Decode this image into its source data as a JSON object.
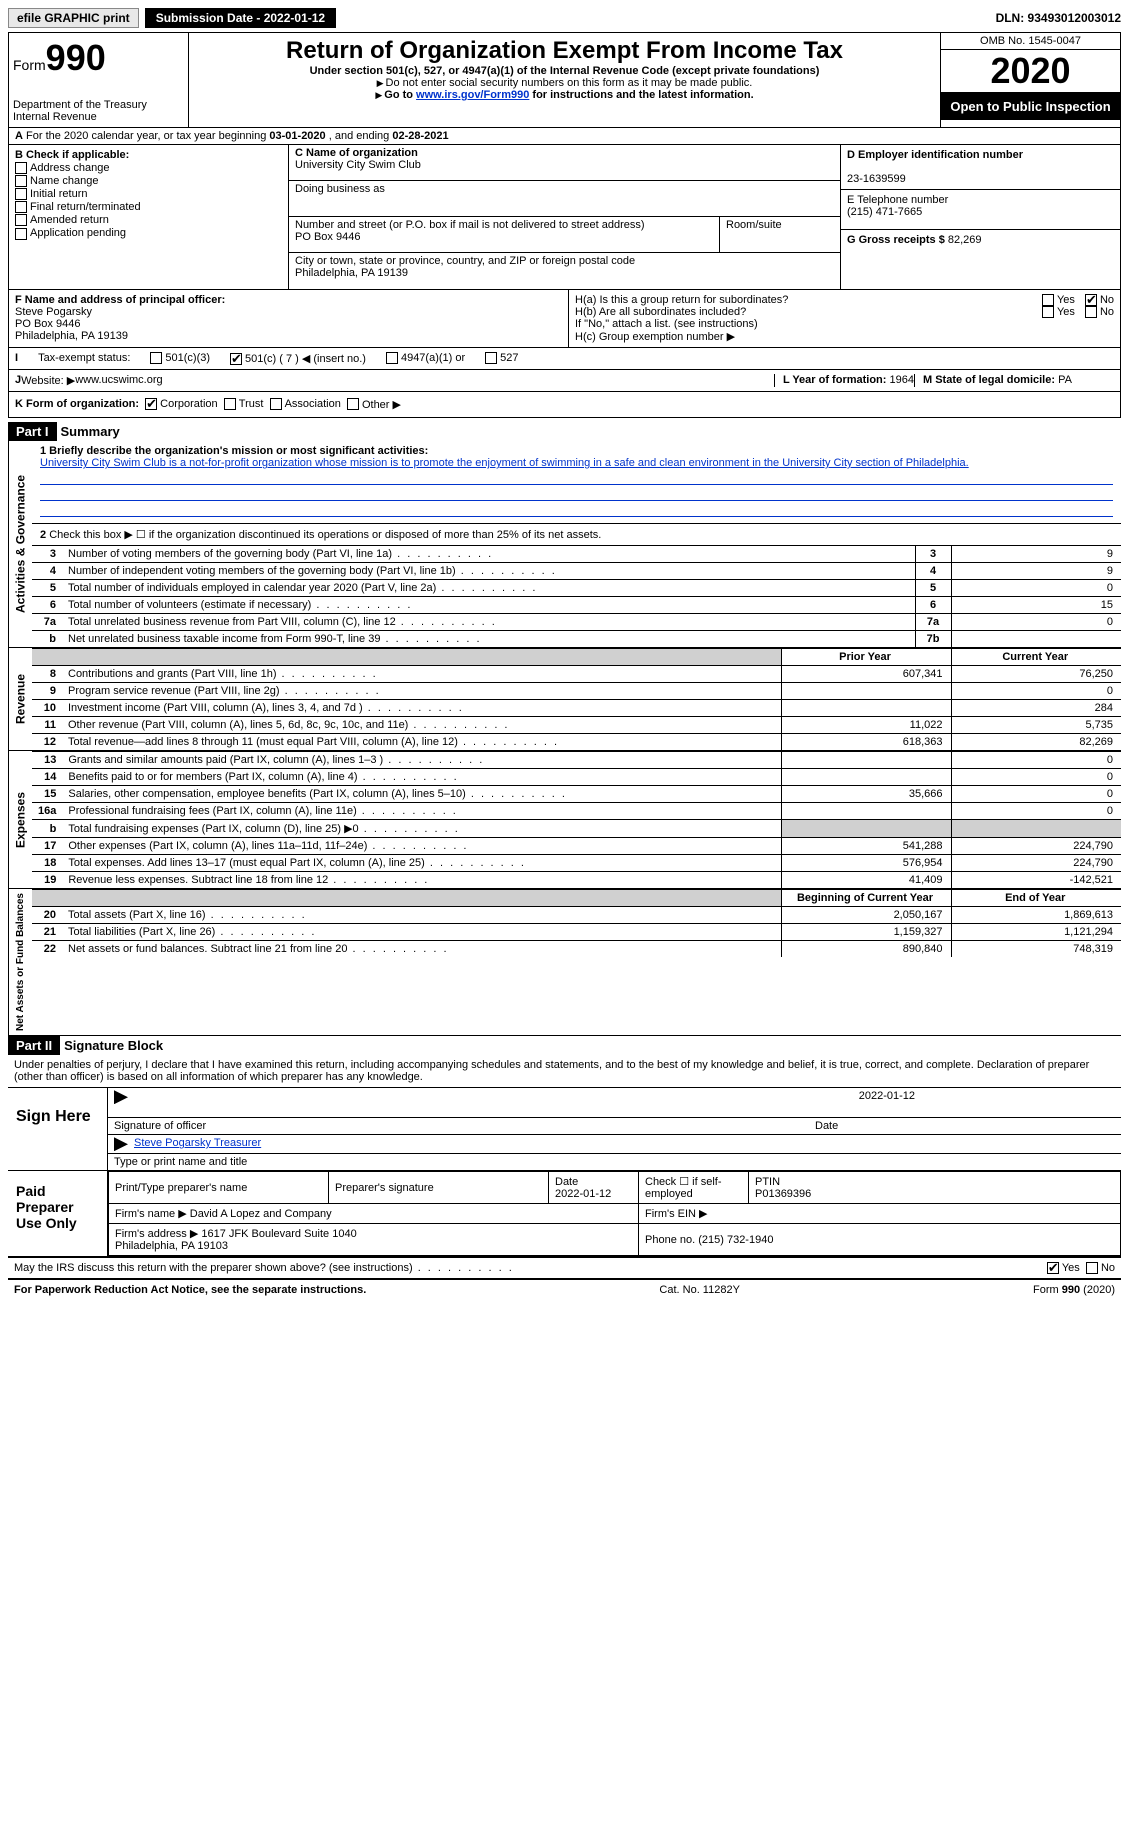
{
  "topbar": {
    "efile": "efile GRAPHIC print",
    "submission": "Submission Date - 2022-01-12",
    "dln": "DLN: 93493012003012"
  },
  "header": {
    "form_prefix": "Form",
    "form_num": "990",
    "dept": "Department of the Treasury\nInternal Revenue",
    "title": "Return of Organization Exempt From Income Tax",
    "sub": "Under section 501(c), 527, or 4947(a)(1) of the Internal Revenue Code (except private foundations)",
    "note1": "Do not enter social security numbers on this form as it may be made public.",
    "note2_pre": "Go to ",
    "note2_link": "www.irs.gov/Form990",
    "note2_post": " for instructions and the latest information.",
    "omb": "OMB No. 1545-0047",
    "year": "2020",
    "inspection": "Open to Public Inspection"
  },
  "line_a": {
    "text": "For the 2020 calendar year, or tax year beginning ",
    "begin": "03-01-2020",
    "mid": " , and ending ",
    "end": "02-28-2021"
  },
  "col_b": {
    "hdr": "B Check if applicable:",
    "opts": [
      "Address change",
      "Name change",
      "Initial return",
      "Final return/terminated",
      "Amended return",
      "Application pending"
    ]
  },
  "col_c": {
    "name_lbl": "C Name of organization",
    "name": "University City Swim Club",
    "dba_lbl": "Doing business as",
    "dba": "",
    "addr_lbl": "Number and street (or P.O. box if mail is not delivered to street address)",
    "room_lbl": "Room/suite",
    "addr": "PO Box 9446",
    "city_lbl": "City or town, state or province, country, and ZIP or foreign postal code",
    "city": "Philadelphia, PA  19139"
  },
  "col_d": {
    "ein_lbl": "D Employer identification number",
    "ein": "23-1639599",
    "tel_lbl": "E Telephone number",
    "tel": "(215) 471-7665",
    "gross_lbl": "G Gross receipts $",
    "gross": "82,269"
  },
  "f": {
    "lbl": "F Name and address of principal officer:",
    "name": "Steve Pogarsky",
    "addr1": "PO Box 9446",
    "addr2": "Philadelphia, PA  19139"
  },
  "h": {
    "a_lbl": "H(a)  Is this a group return for subordinates?",
    "a_yes": "Yes",
    "a_no": "No",
    "b_lbl": "H(b)  Are all subordinates included?",
    "b_note": "If \"No,\" attach a list. (see instructions)",
    "c_lbl": "H(c)  Group exemption number ▶"
  },
  "i": {
    "lbl": "Tax-exempt status:",
    "o1": "501(c)(3)",
    "o2": "501(c) ( 7 ) ◀ (insert no.)",
    "o3": "4947(a)(1) or",
    "o4": "527"
  },
  "j": {
    "lbl": "Website: ▶",
    "val": "www.ucswimc.org"
  },
  "k": {
    "lbl": "K Form of organization:",
    "o1": "Corporation",
    "o2": "Trust",
    "o3": "Association",
    "o4": "Other ▶",
    "l_lbl": "L Year of formation:",
    "l_val": "1964",
    "m_lbl": "M State of legal domicile:",
    "m_val": "PA"
  },
  "part1": {
    "hdr": "Part I",
    "title": "Summary",
    "q1_lbl": "1  Briefly describe the organization's mission or most significant activities:",
    "q1_val": "University City Swim Club is a not-for-profit organization whose mission is to promote the enjoyment of swimming in a safe and clean environment in the University City section of Philadelphia.",
    "q2": "Check this box ▶ ☐  if the organization discontinued its operations or disposed of more than 25% of its net assets.",
    "gov_rows": [
      {
        "n": "3",
        "d": "Number of voting members of the governing body (Part VI, line 1a)",
        "b": "3",
        "v": "9"
      },
      {
        "n": "4",
        "d": "Number of independent voting members of the governing body (Part VI, line 1b)",
        "b": "4",
        "v": "9"
      },
      {
        "n": "5",
        "d": "Total number of individuals employed in calendar year 2020 (Part V, line 2a)",
        "b": "5",
        "v": "0"
      },
      {
        "n": "6",
        "d": "Total number of volunteers (estimate if necessary)",
        "b": "6",
        "v": "15"
      },
      {
        "n": "7a",
        "d": "Total unrelated business revenue from Part VIII, column (C), line 12",
        "b": "7a",
        "v": "0"
      },
      {
        "n": "b",
        "d": "Net unrelated business taxable income from Form 990-T, line 39",
        "b": "7b",
        "v": ""
      }
    ],
    "col_py": "Prior Year",
    "col_cy": "Current Year",
    "rev_rows": [
      {
        "n": "8",
        "d": "Contributions and grants (Part VIII, line 1h)",
        "py": "607,341",
        "cy": "76,250"
      },
      {
        "n": "9",
        "d": "Program service revenue (Part VIII, line 2g)",
        "py": "",
        "cy": "0"
      },
      {
        "n": "10",
        "d": "Investment income (Part VIII, column (A), lines 3, 4, and 7d )",
        "py": "",
        "cy": "284"
      },
      {
        "n": "11",
        "d": "Other revenue (Part VIII, column (A), lines 5, 6d, 8c, 9c, 10c, and 11e)",
        "py": "11,022",
        "cy": "5,735"
      },
      {
        "n": "12",
        "d": "Total revenue—add lines 8 through 11 (must equal Part VIII, column (A), line 12)",
        "py": "618,363",
        "cy": "82,269"
      }
    ],
    "exp_rows": [
      {
        "n": "13",
        "d": "Grants and similar amounts paid (Part IX, column (A), lines 1–3 )",
        "py": "",
        "cy": "0"
      },
      {
        "n": "14",
        "d": "Benefits paid to or for members (Part IX, column (A), line 4)",
        "py": "",
        "cy": "0"
      },
      {
        "n": "15",
        "d": "Salaries, other compensation, employee benefits (Part IX, column (A), lines 5–10)",
        "py": "35,666",
        "cy": "0"
      },
      {
        "n": "16a",
        "d": "Professional fundraising fees (Part IX, column (A), line 11e)",
        "py": "",
        "cy": "0"
      },
      {
        "n": "b",
        "d": "Total fundraising expenses (Part IX, column (D), line 25) ▶0",
        "py": "shade",
        "cy": "shade"
      },
      {
        "n": "17",
        "d": "Other expenses (Part IX, column (A), lines 11a–11d, 11f–24e)",
        "py": "541,288",
        "cy": "224,790"
      },
      {
        "n": "18",
        "d": "Total expenses. Add lines 13–17 (must equal Part IX, column (A), line 25)",
        "py": "576,954",
        "cy": "224,790"
      },
      {
        "n": "19",
        "d": "Revenue less expenses. Subtract line 18 from line 12",
        "py": "41,409",
        "cy": "-142,521"
      }
    ],
    "col_boy": "Beginning of Current Year",
    "col_eoy": "End of Year",
    "na_rows": [
      {
        "n": "20",
        "d": "Total assets (Part X, line 16)",
        "py": "2,050,167",
        "cy": "1,869,613"
      },
      {
        "n": "21",
        "d": "Total liabilities (Part X, line 26)",
        "py": "1,159,327",
        "cy": "1,121,294"
      },
      {
        "n": "22",
        "d": "Net assets or fund balances. Subtract line 21 from line 20",
        "py": "890,840",
        "cy": "748,319"
      }
    ],
    "vtab_gov": "Activities & Governance",
    "vtab_rev": "Revenue",
    "vtab_exp": "Expenses",
    "vtab_na": "Net Assets or Fund Balances"
  },
  "part2": {
    "hdr": "Part II",
    "title": "Signature Block"
  },
  "sig": {
    "intro": "Under penalties of perjury, I declare that I have examined this return, including accompanying schedules and statements, and to the best of my knowledge and belief, it is true, correct, and complete. Declaration of preparer (other than officer) is based on all information of which preparer has any knowledge.",
    "here": "Sign Here",
    "officer_lbl": "Signature of officer",
    "date_lbl": "Date",
    "date": "2022-01-12",
    "officer_name": "Steve Pogarsky  Treasurer",
    "name_lbl": "Type or print name and title",
    "paid": "Paid Preparer Use Only",
    "prep_name_lbl": "Print/Type preparer's name",
    "prep_sig_lbl": "Preparer's signature",
    "prep_date_lbl": "Date",
    "prep_date": "2022-01-12",
    "self_lbl": "Check ☐ if self-employed",
    "ptin_lbl": "PTIN",
    "ptin": "P01369396",
    "firm_name_lbl": "Firm's name  ▶",
    "firm_name": "David A Lopez and Company",
    "firm_ein_lbl": "Firm's EIN ▶",
    "firm_addr_lbl": "Firm's address ▶",
    "firm_addr": "1617 JFK Boulevard Suite 1040\nPhiladelphia, PA  19103",
    "firm_phone_lbl": "Phone no.",
    "firm_phone": "(215) 732-1940",
    "discuss": "May the IRS discuss this return with the preparer shown above? (see instructions)",
    "yes": "Yes",
    "no": "No"
  },
  "footer": {
    "left": "For Paperwork Reduction Act Notice, see the separate instructions.",
    "mid": "Cat. No. 11282Y",
    "right": "Form 990 (2020)"
  }
}
